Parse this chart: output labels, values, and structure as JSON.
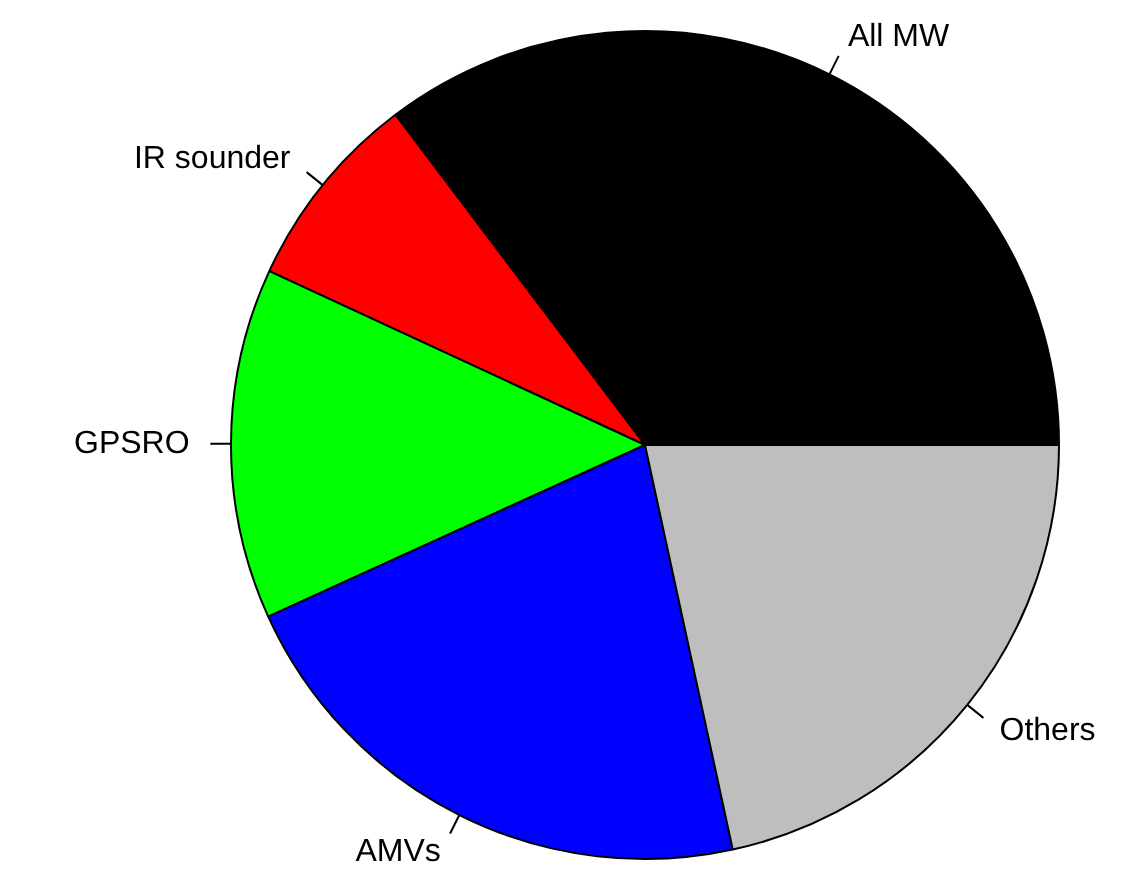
{
  "chart_data": {
    "type": "pie",
    "categories": [
      "All MW",
      "IR sounder",
      "GPSRO",
      "AMVs",
      "Others"
    ],
    "values": [
      35.3,
      7.8,
      13.7,
      21.6,
      21.6
    ],
    "colors": [
      "#000000",
      "#ff0000",
      "#00ff00",
      "#0000ff",
      "#bebebe"
    ]
  }
}
